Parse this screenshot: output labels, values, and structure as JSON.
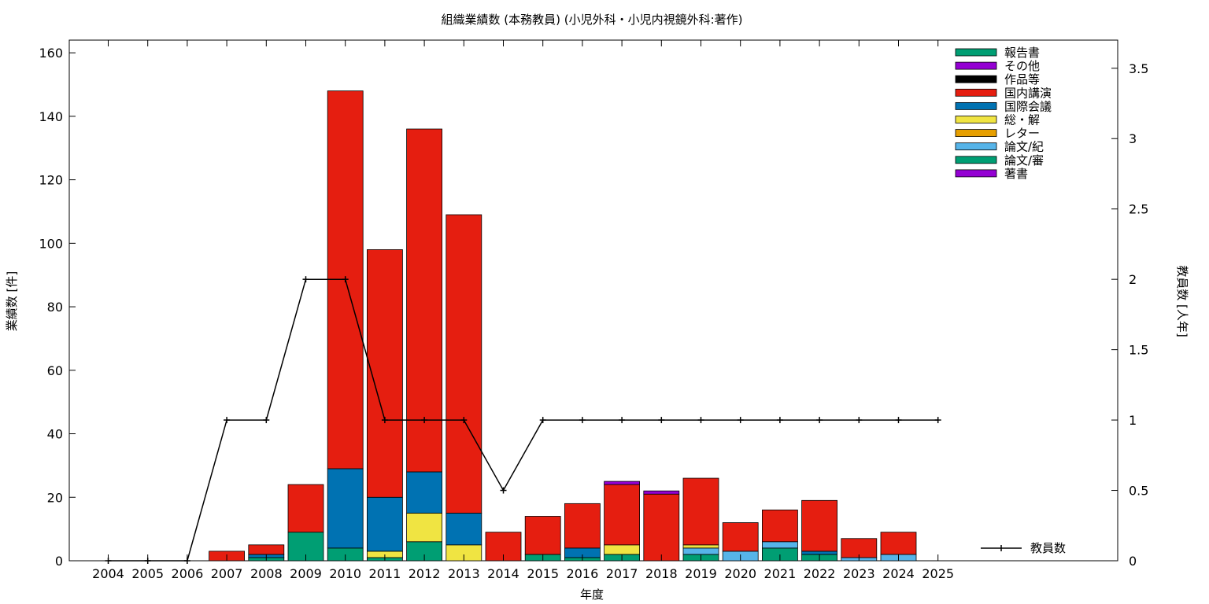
{
  "chart_data": {
    "type": "bar",
    "title": "組織業績数 (本務教員) (小児外科・小児内視鏡外科:著作)",
    "xlabel": "年度",
    "ylabel": "業績数 [件]",
    "y2label": "教員数 [人年]",
    "categories": [
      "2004",
      "2005",
      "2006",
      "2007",
      "2008",
      "2009",
      "2010",
      "2011",
      "2012",
      "2013",
      "2014",
      "2015",
      "2016",
      "2017",
      "2018",
      "2019",
      "2020",
      "2021",
      "2022",
      "2023",
      "2024",
      "2025"
    ],
    "ylim": [
      0,
      164
    ],
    "yticks": [
      0,
      20,
      40,
      60,
      80,
      100,
      120,
      140,
      160
    ],
    "y2lim": [
      0,
      3.7
    ],
    "y2ticks": [
      0,
      0.5,
      1,
      1.5,
      2,
      2.5,
      3,
      3.5
    ],
    "y2tick_labels": [
      "0",
      "0.5",
      "1",
      "1.5",
      "2",
      "2.5",
      "3",
      "3.5"
    ],
    "stacked": true,
    "legend_position": "top-right",
    "series": [
      {
        "name": "著書",
        "color": "#9400d3",
        "values": [
          0,
          0,
          0,
          0,
          0,
          0,
          0,
          0,
          0,
          0,
          0,
          0,
          0,
          0,
          0,
          0,
          0,
          0,
          0,
          0,
          0,
          0
        ]
      },
      {
        "name": "論文/審",
        "color": "#009e73",
        "values": [
          0,
          0,
          0,
          0,
          1,
          9,
          4,
          1,
          6,
          0,
          0,
          2,
          1,
          2,
          0,
          2,
          0,
          4,
          2,
          0,
          0,
          0
        ]
      },
      {
        "name": "論文/紀",
        "color": "#56b4e9",
        "values": [
          0,
          0,
          0,
          0,
          0,
          0,
          0,
          0,
          0,
          0,
          0,
          0,
          0,
          0,
          0,
          2,
          3,
          2,
          0,
          1,
          2,
          0
        ]
      },
      {
        "name": "レター",
        "color": "#e69f00",
        "values": [
          0,
          0,
          0,
          0,
          0,
          0,
          0,
          0,
          0,
          0,
          0,
          0,
          0,
          0,
          0,
          0,
          0,
          0,
          0,
          0,
          0,
          0
        ]
      },
      {
        "name": "総・解",
        "color": "#f0e442",
        "values": [
          0,
          0,
          0,
          0,
          0,
          0,
          0,
          2,
          9,
          5,
          0,
          0,
          0,
          3,
          0,
          1,
          0,
          0,
          0,
          0,
          0,
          0
        ]
      },
      {
        "name": "国際会議",
        "color": "#0072b2",
        "values": [
          0,
          0,
          0,
          0,
          1,
          0,
          25,
          17,
          13,
          10,
          0,
          0,
          3,
          0,
          0,
          0,
          0,
          0,
          1,
          0,
          0,
          0
        ]
      },
      {
        "name": "国内講演",
        "color": "#e51e10",
        "values": [
          0,
          0,
          0,
          3,
          3,
          15,
          119,
          78,
          108,
          94,
          9,
          12,
          14,
          19,
          21,
          21,
          9,
          10,
          16,
          6,
          7,
          0
        ]
      },
      {
        "name": "作品等",
        "color": "#000000",
        "values": [
          0,
          0,
          0,
          0,
          0,
          0,
          0,
          0,
          0,
          0,
          0,
          0,
          0,
          0,
          0,
          0,
          0,
          0,
          0,
          0,
          0,
          0
        ]
      },
      {
        "name": "その他",
        "color": "#9400d3",
        "values": [
          0,
          0,
          0,
          0,
          0,
          0,
          0,
          0,
          0,
          0,
          0,
          0,
          0,
          1,
          1,
          0,
          0,
          0,
          0,
          0,
          0,
          0
        ]
      },
      {
        "name": "報告書",
        "color": "#009e73",
        "values": [
          0,
          0,
          0,
          0,
          0,
          0,
          0,
          0,
          0,
          0,
          0,
          0,
          0,
          0,
          0,
          0,
          0,
          0,
          0,
          0,
          0,
          0
        ]
      }
    ],
    "line": {
      "name": "教員数",
      "color": "#000000",
      "axis": "y2",
      "values": [
        0,
        0,
        0,
        1,
        1,
        2,
        2,
        1,
        1,
        1,
        0.5,
        1,
        1,
        1,
        1,
        1,
        1,
        1,
        1,
        1,
        1,
        1
      ]
    }
  }
}
